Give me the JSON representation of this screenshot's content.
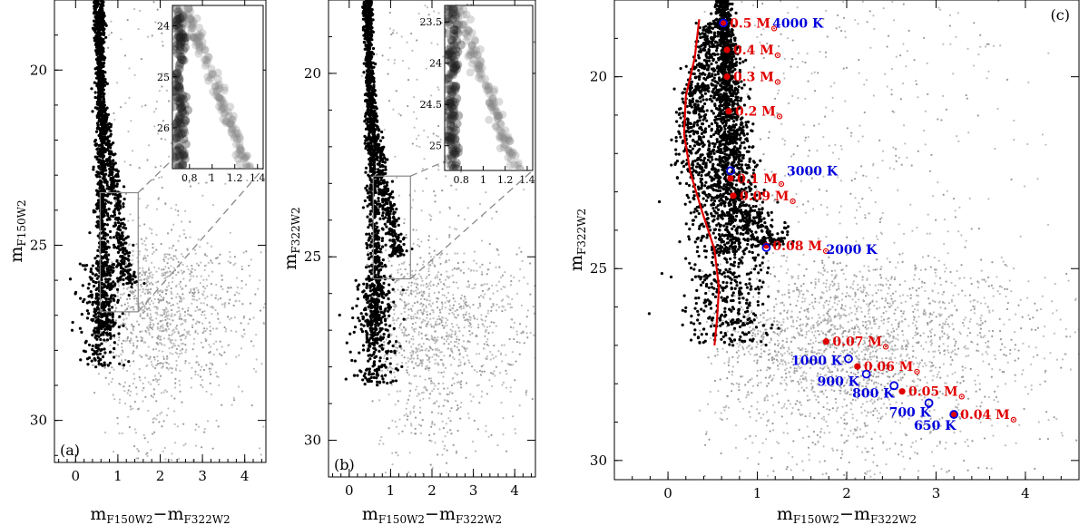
{
  "chart_data": [
    {
      "type": "scatter",
      "panel_label": "(a)",
      "xlabel": {
        "main": "m",
        "sub1": "F150W2",
        "dash": "−m",
        "sub2": "F322W2"
      },
      "ylabel": {
        "main": "m",
        "sub": "F150W2"
      },
      "xlim": [
        -0.5,
        4.5
      ],
      "ylim": [
        31.2,
        18.0
      ],
      "x_ticks": [
        "0",
        "1",
        "2",
        "3",
        "4"
      ],
      "y_ticks": [
        "20",
        "25",
        "30"
      ],
      "inset": {
        "xlim": [
          0.65,
          1.45
        ],
        "ylim": [
          26.8,
          23.6
        ],
        "x_ticks": [
          "0.8",
          "1",
          "1.2",
          "1.4"
        ],
        "y_ticks": [
          "24",
          "25",
          "26"
        ],
        "zoom_box": {
          "x": [
            0.58,
            1.48
          ],
          "y": [
            23.5,
            26.9
          ]
        }
      },
      "sequences": [
        {
          "name": "",
          "color": "#000000",
          "points": [
            [
              0.62,
              18.0
            ],
            [
              0.6,
              19.5
            ],
            [
              0.6,
              21.0
            ],
            [
              0.62,
              22.5
            ],
            [
              0.64,
              24.0
            ],
            [
              0.65,
              25.5
            ],
            [
              0.68,
              26.5
            ],
            [
              0.7,
              27.5
            ]
          ]
        },
        {
          "name": "",
          "color": "#000000",
          "points": [
            [
              0.48,
              18.0
            ],
            [
              0.52,
              19.5
            ],
            [
              0.6,
              21.0
            ],
            [
              0.8,
              22.5
            ],
            [
              1.0,
              24.0
            ],
            [
              1.15,
              25.5
            ],
            [
              1.3,
              26.2
            ]
          ]
        }
      ]
    },
    {
      "type": "scatter",
      "panel_label": "(b)",
      "xlabel": {
        "main": "m",
        "sub1": "F150W2",
        "dash": "−m",
        "sub2": "F322W2"
      },
      "ylabel": {
        "main": "m",
        "sub": "F322W2"
      },
      "xlim": [
        -0.5,
        4.5
      ],
      "ylim": [
        31.0,
        18.0
      ],
      "x_ticks": [
        "0",
        "1",
        "2",
        "3",
        "4"
      ],
      "y_ticks": [
        "20",
        "25",
        "30"
      ],
      "inset": {
        "xlim": [
          0.65,
          1.45
        ],
        "ylim": [
          25.3,
          23.3
        ],
        "x_ticks": [
          "0.8",
          "1",
          "1.2",
          "1.4"
        ],
        "y_ticks": [
          "23.5",
          "24",
          "24.5",
          "25"
        ],
        "zoom_box": {
          "x": [
            0.58,
            1.48
          ],
          "y": [
            22.8,
            25.6
          ]
        }
      },
      "sequences": [
        {
          "name": "",
          "color": "#000000",
          "points": [
            [
              0.5,
              18.0
            ],
            [
              0.5,
              19.5
            ],
            [
              0.52,
              21.0
            ],
            [
              0.55,
              22.5
            ],
            [
              0.6,
              24.0
            ],
            [
              0.65,
              25.5
            ],
            [
              0.65,
              26.5
            ],
            [
              0.6,
              27.5
            ]
          ]
        },
        {
          "name": "",
          "color": "#000000",
          "points": [
            [
              0.4,
              18.0
            ],
            [
              0.45,
              19.5
            ],
            [
              0.55,
              21.0
            ],
            [
              0.75,
              22.5
            ],
            [
              1.0,
              24.0
            ],
            [
              1.2,
              25.0
            ]
          ]
        }
      ]
    },
    {
      "type": "scatter",
      "panel_label": "(c)",
      "xlabel": {
        "main": "m",
        "sub1": "F150W2",
        "dash": "−m",
        "sub2": "F322W2"
      },
      "ylabel": {
        "main": "m",
        "sub": "F322W2"
      },
      "xlim": [
        -0.6,
        4.6
      ],
      "ylim": [
        30.5,
        18.0
      ],
      "x_ticks": [
        "0",
        "1",
        "2",
        "3",
        "4"
      ],
      "y_ticks": [
        "20",
        "25",
        "30"
      ],
      "red_line": [
        [
          0.35,
          18.5
        ],
        [
          0.3,
          19.5
        ],
        [
          0.2,
          20.5
        ],
        [
          0.18,
          21.5
        ],
        [
          0.25,
          22.5
        ],
        [
          0.38,
          23.5
        ],
        [
          0.52,
          24.5
        ],
        [
          0.57,
          25.5
        ],
        [
          0.55,
          26.3
        ],
        [
          0.52,
          27.0
        ]
      ],
      "mass_points": [
        {
          "label": "0.5 M",
          "x": 0.62,
          "y": 18.6
        },
        {
          "label": "0.4 M",
          "x": 0.66,
          "y": 19.3
        },
        {
          "label": "0.3 M",
          "x": 0.66,
          "y": 20.0
        },
        {
          "label": "0.2 M",
          "x": 0.68,
          "y": 20.9
        },
        {
          "label": "0.1 M",
          "x": 0.7,
          "y": 22.65
        },
        {
          "label": "0.09 M",
          "x": 0.73,
          "y": 23.1
        },
        {
          "label": "0.08 M",
          "x": 1.1,
          "y": 24.4
        },
        {
          "label": "0.07 M",
          "x": 1.77,
          "y": 26.9
        },
        {
          "label": "0.06 M",
          "x": 2.12,
          "y": 27.55
        },
        {
          "label": "0.05 M",
          "x": 2.62,
          "y": 28.2
        },
        {
          "label": "0.04 M",
          "x": 3.2,
          "y": 28.8
        }
      ],
      "temperature_points": [
        {
          "label": "4000 K",
          "x": 0.62,
          "y": 18.6
        },
        {
          "label": "3000 K",
          "x": 0.7,
          "y": 22.45
        },
        {
          "label": "2000 K",
          "x": 1.1,
          "y": 24.45
        },
        {
          "label": "1000 K",
          "x": 2.02,
          "y": 27.35
        },
        {
          "label": "900 K",
          "x": 2.22,
          "y": 27.75
        },
        {
          "label": "800 K",
          "x": 2.53,
          "y": 28.05
        },
        {
          "label": "700 K",
          "x": 2.92,
          "y": 28.5
        },
        {
          "label": "650 K",
          "x": 3.2,
          "y": 28.8
        }
      ]
    }
  ],
  "mass_unit_symbol": "⊙",
  "colors": {
    "cluster": "#000000",
    "field": "#bdbdbd",
    "mass": "#e00000",
    "temperature": "#0000dd",
    "track": "#e00000"
  }
}
